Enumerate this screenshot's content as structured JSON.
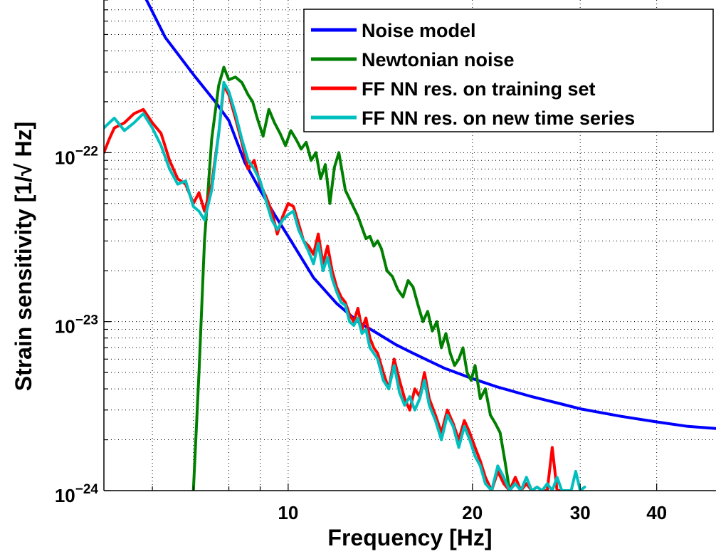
{
  "chart_data": {
    "type": "line",
    "title": "",
    "xlabel": "Frequency [Hz]",
    "ylabel": "Strain sensitivity [1/√ Hz]",
    "x_scale": "log",
    "y_scale": "log",
    "xlim": [
      5,
      50
    ],
    "ylim": [
      1e-24,
      8e-22
    ],
    "grid": true,
    "legend_position": "top-right",
    "x_ticks": [
      {
        "value": 10,
        "label": "10"
      },
      {
        "value": 20,
        "label": "20"
      },
      {
        "value": 30,
        "label": "30"
      },
      {
        "value": 40,
        "label": "40"
      }
    ],
    "y_ticks": [
      {
        "value": 1e-22,
        "base": "10",
        "exp": "−22"
      },
      {
        "value": 1e-23,
        "base": "10",
        "exp": "−23"
      },
      {
        "value": 1e-24,
        "base": "10",
        "exp": "−24"
      }
    ],
    "series": [
      {
        "name": "Noise model",
        "color": "#0000ff",
        "x": [
          5.85,
          6.3,
          7.0,
          7.6,
          8.0,
          8.5,
          9.0,
          9.5,
          10.0,
          11.0,
          12.0,
          13.0,
          14.0,
          15.0,
          16.0,
          18.0,
          20.0,
          22.0,
          25.0,
          28.0,
          30.0,
          35.0,
          40.0,
          45.0,
          50.0
        ],
        "y": [
          8.2e-22,
          4.8e-22,
          2.9e-22,
          2e-22,
          1.55e-22,
          8.7e-23,
          6e-23,
          4.3e-23,
          3.2e-23,
          1.82e-23,
          1.28e-23,
          1e-23,
          8.5e-24,
          7.3e-24,
          6.5e-24,
          5.3e-24,
          4.6e-24,
          4.1e-24,
          3.6e-24,
          3.25e-24,
          3.05e-24,
          2.75e-24,
          2.55e-24,
          2.4e-24,
          2.33e-24
        ]
      },
      {
        "name": "Newtonian noise",
        "color": "#007f00",
        "x": [
          7.0,
          7.15,
          7.3,
          7.5,
          7.7,
          7.85,
          8.0,
          8.2,
          8.4,
          8.6,
          8.75,
          8.9,
          9.1,
          9.3,
          9.5,
          9.7,
          9.9,
          10.1,
          10.3,
          10.5,
          10.7,
          10.9,
          11.1,
          11.3,
          11.5,
          11.7,
          11.9,
          12.1,
          12.4,
          12.7,
          13.0,
          13.2,
          13.4,
          13.6,
          13.8,
          14.0,
          14.2,
          14.5,
          14.8,
          15.1,
          15.4,
          15.7,
          16.0,
          16.3,
          16.6,
          16.9,
          17.2,
          17.5,
          17.8,
          18.1,
          18.4,
          18.7,
          19.0,
          19.3,
          19.6,
          19.9,
          20.2,
          20.6,
          21.0,
          21.4,
          21.8,
          22.2,
          22.6,
          23.0
        ],
        "y": [
          1e-24,
          5e-24,
          3e-23,
          1.2e-22,
          2.5e-22,
          3.2e-22,
          2.7e-22,
          2.8e-22,
          2.6e-22,
          2.2e-22,
          2e-22,
          1.6e-22,
          1.25e-22,
          1.8e-22,
          1.5e-22,
          1.3e-22,
          1.1e-22,
          1.35e-22,
          1.2e-22,
          1.05e-22,
          1.15e-22,
          9e-23,
          1e-22,
          7e-23,
          8.5e-23,
          5e-23,
          8.2e-23,
          1e-22,
          6e-23,
          5e-23,
          4.2e-23,
          3.6e-23,
          3.1e-23,
          3.2e-23,
          2.8e-23,
          3e-23,
          2.7e-23,
          2e-23,
          1.85e-23,
          1.55e-23,
          1.4e-23,
          1.75e-23,
          1.6e-23,
          1.25e-23,
          1e-23,
          1.15e-23,
          8.8e-24,
          1e-23,
          7e-24,
          8.5e-24,
          6.5e-24,
          5.5e-24,
          6e-24,
          7e-24,
          5e-24,
          4.5e-24,
          5.5e-24,
          3.5e-24,
          4e-24,
          2.8e-24,
          2.5e-24,
          2.2e-24,
          1.5e-24,
          1e-24
        ]
      },
      {
        "name": "FF NN res. on training set",
        "color": "#ff0000",
        "x": [
          5.0,
          5.1,
          5.2,
          5.4,
          5.6,
          5.8,
          6.0,
          6.2,
          6.4,
          6.6,
          6.8,
          7.0,
          7.15,
          7.3,
          7.5,
          7.7,
          7.85,
          8.0,
          8.2,
          8.4,
          8.6,
          8.8,
          9.0,
          9.2,
          9.4,
          9.6,
          9.8,
          10.0,
          10.2,
          10.4,
          10.6,
          10.8,
          11.0,
          11.2,
          11.4,
          11.6,
          11.8,
          12.0,
          12.2,
          12.4,
          12.6,
          12.8,
          13.0,
          13.2,
          13.4,
          13.6,
          13.8,
          14.0,
          14.3,
          14.6,
          14.9,
          15.2,
          15.5,
          15.8,
          16.1,
          16.4,
          16.7,
          17.0,
          17.4,
          17.8,
          18.2,
          18.6,
          19.0,
          19.4,
          19.8,
          20.2,
          20.6,
          21.0,
          21.5,
          22.0,
          22.5,
          23.0,
          23.5,
          24.0,
          24.5,
          25.0,
          25.5,
          26.0,
          26.5,
          27.0,
          27.5,
          28.0
        ],
        "y": [
          1e-22,
          1.2e-22,
          1.4e-22,
          1.5e-22,
          1.7e-22,
          1.8e-22,
          1.5e-22,
          1.3e-22,
          9e-23,
          7e-23,
          6.5e-23,
          5e-23,
          5.8e-23,
          4.5e-23,
          6.5e-23,
          1.3e-22,
          2.5e-22,
          2.2e-22,
          1.6e-22,
          1.15e-22,
          8e-23,
          9e-23,
          6.5e-23,
          5.5e-23,
          4.5e-23,
          3.3e-23,
          4.2e-23,
          5e-23,
          4.8e-23,
          3.8e-23,
          3e-23,
          2.8e-23,
          2.5e-23,
          3.3e-23,
          2.2e-23,
          2.8e-23,
          2e-23,
          1.6e-23,
          1.4e-23,
          1.3e-23,
          1.1e-23,
          1e-23,
          1.2e-23,
          9e-24,
          1.05e-23,
          8e-24,
          7e-24,
          6.5e-24,
          5e-24,
          4e-24,
          6e-24,
          4.5e-24,
          3.5e-24,
          3e-24,
          4e-24,
          3.6e-24,
          5e-24,
          3.5e-24,
          2.8e-24,
          2.2e-24,
          3e-24,
          2.5e-24,
          2e-24,
          2.6e-24,
          2.2e-24,
          1.8e-24,
          1.5e-24,
          1.2e-24,
          1e-24,
          1.3e-24,
          1.1e-24,
          1e-24,
          1.2e-24,
          1e-24,
          1.1e-24,
          1e-24,
          1.05e-24,
          1e-24,
          1e-24,
          1.8e-24,
          1e-24,
          1e-24
        ]
      },
      {
        "name": "FF NN res. on new time series",
        "color": "#00bfbf",
        "x": [
          5.0,
          5.1,
          5.2,
          5.4,
          5.6,
          5.8,
          6.0,
          6.2,
          6.4,
          6.6,
          6.8,
          7.0,
          7.15,
          7.3,
          7.5,
          7.7,
          7.85,
          8.0,
          8.2,
          8.4,
          8.6,
          8.8,
          9.0,
          9.2,
          9.4,
          9.6,
          9.8,
          10.0,
          10.2,
          10.4,
          10.6,
          10.8,
          11.0,
          11.2,
          11.4,
          11.6,
          11.8,
          12.0,
          12.2,
          12.4,
          12.6,
          12.8,
          13.0,
          13.2,
          13.4,
          13.6,
          13.8,
          14.0,
          14.3,
          14.6,
          14.9,
          15.2,
          15.5,
          15.8,
          16.1,
          16.4,
          16.7,
          17.0,
          17.4,
          17.8,
          18.2,
          18.6,
          19.0,
          19.4,
          19.8,
          20.2,
          20.6,
          21.0,
          21.5,
          22.0,
          22.5,
          23.0,
          23.5,
          24.0,
          24.5,
          25.0,
          25.5,
          26.0,
          26.5,
          27.0,
          27.5,
          28.0,
          28.5,
          29.0,
          29.5,
          30.0,
          30.5
        ],
        "y": [
          1.4e-22,
          1.5e-22,
          1.6e-22,
          1.35e-22,
          1.5e-22,
          1.7e-22,
          1.4e-22,
          1.1e-22,
          8e-23,
          6.5e-23,
          6.8e-23,
          4.8e-23,
          4.5e-23,
          4e-23,
          6e-23,
          1.3e-22,
          2.6e-22,
          2.3e-22,
          1.7e-22,
          1.2e-22,
          9e-23,
          8e-23,
          6.8e-23,
          5.2e-23,
          4e-23,
          3.5e-23,
          4e-23,
          4.3e-23,
          4.5e-23,
          3.5e-23,
          3e-23,
          2.6e-23,
          2.2e-23,
          2.9e-23,
          2e-23,
          2.4e-23,
          1.8e-23,
          1.5e-23,
          1.3e-23,
          1.25e-23,
          1e-23,
          9.5e-24,
          1.05e-23,
          8.5e-24,
          9e-24,
          7e-24,
          6.5e-24,
          6e-24,
          4.5e-24,
          4e-24,
          5.5e-24,
          3.8e-24,
          3.2e-24,
          3.6e-24,
          3e-24,
          3.5e-24,
          4.5e-24,
          3.2e-24,
          2.6e-24,
          2e-24,
          2.8e-24,
          2.4e-24,
          1.8e-24,
          2.4e-24,
          2e-24,
          1.6e-24,
          1.4e-24,
          1.1e-24,
          1e-24,
          1.4e-24,
          1.2e-24,
          1e-24,
          1.1e-24,
          1e-24,
          1.2e-24,
          1e-24,
          1.05e-24,
          1e-24,
          1.1e-24,
          1e-24,
          1.2e-24,
          1e-24,
          1e-24,
          1e-24,
          1.3e-24,
          1e-24,
          1.05e-24
        ]
      }
    ]
  }
}
